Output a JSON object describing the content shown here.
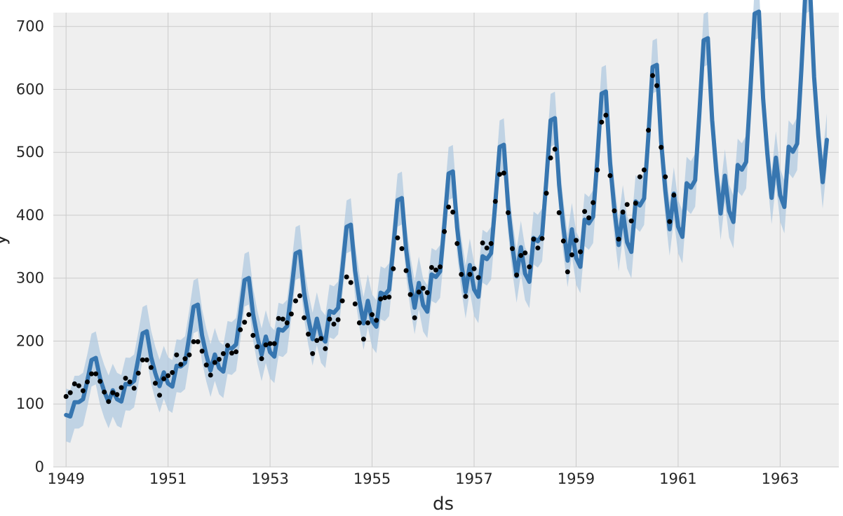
{
  "chart_data": {
    "type": "line",
    "title": "",
    "xlabel": "ds",
    "ylabel": "y",
    "xlim": [
      1948.75,
      1964.15
    ],
    "ylim": [
      0,
      722
    ],
    "x_ticks": [
      1949,
      1951,
      1953,
      1955,
      1957,
      1959,
      1961,
      1963
    ],
    "x_tick_labels": [
      "1949",
      "1951",
      "1953",
      "1955",
      "1957",
      "1959",
      "1961",
      "1963"
    ],
    "y_ticks": [
      0,
      100,
      200,
      300,
      400,
      500,
      600,
      700
    ],
    "y_tick_labels": [
      "0",
      "100",
      "200",
      "300",
      "400",
      "500",
      "600",
      "700"
    ],
    "grid": true,
    "colors": {
      "background": "#efefef",
      "grid": "#cbcbcb",
      "forecast_line": "#3776b0",
      "interval_band": "#adc8e0",
      "observations": "#000000"
    },
    "forecast_seasonal_shape": [
      0.86,
      0.82,
      1.0,
      0.98,
      1.0,
      1.22,
      1.46,
      1.46,
      1.18,
      1.0,
      0.86,
      0.98
    ],
    "forecast_trend": {
      "start": 110,
      "slope_per_year": 29.0
    },
    "interval_halfwidth": 42,
    "series": [
      {
        "kind": "observations",
        "x_start": 1949.0,
        "x_step_months": 1,
        "values": [
          112,
          118,
          132,
          129,
          121,
          135,
          148,
          148,
          136,
          119,
          104,
          118,
          115,
          126,
          141,
          135,
          125,
          149,
          170,
          170,
          158,
          133,
          114,
          140,
          145,
          150,
          178,
          163,
          172,
          178,
          199,
          199,
          184,
          162,
          146,
          166,
          171,
          180,
          193,
          181,
          183,
          218,
          230,
          242,
          209,
          191,
          172,
          194,
          196,
          196,
          236,
          235,
          229,
          243,
          264,
          272,
          237,
          211,
          180,
          201,
          204,
          188,
          235,
          227,
          234,
          264,
          302,
          293,
          259,
          229,
          203,
          229,
          242,
          233,
          267,
          269,
          270,
          315,
          364,
          347,
          312,
          274,
          237,
          278,
          284,
          277,
          317,
          313,
          318,
          374,
          413,
          405,
          355,
          306,
          271,
          306,
          315,
          301,
          356,
          348,
          355,
          422,
          465,
          467,
          404,
          347,
          305,
          336,
          340,
          318,
          362,
          348,
          363,
          435,
          491,
          505,
          404,
          359,
          310,
          337,
          360,
          342,
          406,
          396,
          420,
          472,
          548,
          559,
          463,
          407,
          362,
          405,
          417,
          391,
          419,
          461,
          472,
          535,
          622,
          606,
          508,
          461,
          390,
          432
        ]
      }
    ]
  }
}
